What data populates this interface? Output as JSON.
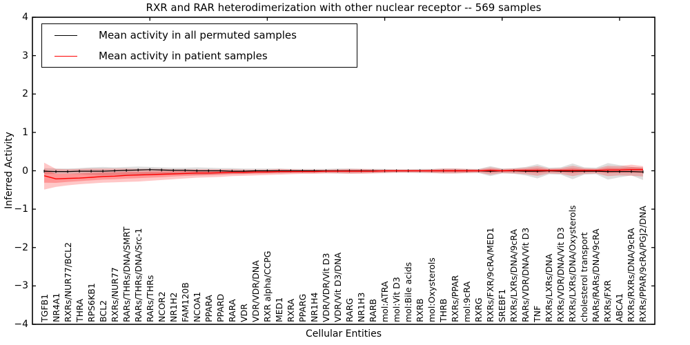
{
  "chart": {
    "title": "RXR and RAR heterodimerization with other nuclear receptor -- 569 samples",
    "xlabel": "Cellular Entities",
    "ylabel": "Inferred Activity"
  },
  "legend": {
    "items": [
      {
        "label": "Mean activity in all permuted samples",
        "color": "#000000"
      },
      {
        "label": "Mean activity in patient samples",
        "color": "#ff0000"
      }
    ]
  },
  "chart_data": {
    "type": "line",
    "title": "RXR and RAR heterodimerization with other nuclear receptor -- 569 samples",
    "xlabel": "Cellular Entities",
    "ylabel": "Inferred Activity",
    "ylim": [
      -4,
      4
    ],
    "yticks": [
      4,
      3,
      2,
      1,
      0,
      -1,
      -2,
      -3,
      -4
    ],
    "ytick_labels": [
      "4",
      "3",
      "2",
      "1",
      "0",
      "−1",
      "−2",
      "−3",
      "−4"
    ],
    "x_major_ticks": [
      10,
      20,
      30,
      40,
      50
    ],
    "grid": false,
    "legend_position": "upper left",
    "categories": [
      "TGFB1",
      "NR4A1",
      "RXRs/NUR77/BCL2",
      "THRA",
      "RPS6KB1",
      "BCL2",
      "RXRs/NUR77",
      "RARs/THRs/DNA/SMRT",
      "RARs/THRs/DNA/Src-1",
      "RARs/THRs",
      "NCOR2",
      "NR1H2",
      "FAM120B",
      "NCOA1",
      "PPARA",
      "PPARD",
      "RARA",
      "VDR",
      "VDR/VDR/DNA",
      "RXR alpha/CCPG",
      "MED1",
      "RXRA",
      "PPARG",
      "NR1H4",
      "VDR/VDR/Vit D3",
      "VDR/Vit D3/DNA",
      "RARG",
      "NR1H3",
      "RARB",
      "mol:ATRA",
      "mol:Vit D3",
      "mol:Bile acids",
      "RXRB",
      "mol:Oxysterols",
      "THRB",
      "RXRs/PPAR",
      "mol:9cRA",
      "RXRG",
      "RXRs/FXR/9cRA/MED1",
      "SREBF1",
      "RXRs/LXRs/DNA/9cRA",
      "RARs/VDR/DNA/Vit D3",
      "TNF",
      "RXRs/LXRs/DNA",
      "RXRs/VDR/DNA/Vit D3",
      "RXRs/LXRs/DNA/Oxysterols",
      "cholesterol transport",
      "RARs/RARs/DNA/9cRA",
      "RXRs/FXR",
      "ABCA1",
      "RXRs/RXRs/DNA/9cRA",
      "RXRs/PPAR/9cRA/PGJ2/DNA"
    ],
    "series": [
      {
        "name": "Mean activity in all permuted samples",
        "color": "#000000",
        "band_color": "#999999",
        "values": [
          -0.01,
          -0.02,
          -0.02,
          -0.01,
          -0.01,
          -0.01,
          0,
          0.01,
          0.02,
          0.03,
          0.02,
          0.01,
          0.01,
          0,
          0,
          0,
          -0.01,
          -0.01,
          0,
          0,
          0,
          0,
          0,
          0,
          0,
          0,
          0,
          0,
          0,
          0,
          0,
          0,
          0,
          0,
          0,
          0,
          0,
          0,
          -0.01,
          0,
          0,
          -0.01,
          -0.01,
          0,
          -0.01,
          -0.01,
          -0.01,
          -0.01,
          -0.02,
          -0.02,
          -0.02,
          -0.03
        ],
        "band_upper": [
          0.07,
          0.06,
          0.06,
          0.07,
          0.09,
          0.1,
          0.09,
          0.1,
          0.11,
          0.1,
          0.09,
          0.08,
          0.08,
          0.09,
          0.08,
          0.07,
          0.07,
          0.06,
          0.06,
          0.06,
          0.06,
          0.05,
          0.05,
          0.05,
          0.05,
          0.06,
          0.06,
          0.05,
          0.05,
          0.05,
          0.04,
          0.04,
          0.05,
          0.05,
          0.06,
          0.06,
          0.05,
          0.05,
          0.12,
          0.06,
          0.07,
          0.1,
          0.17,
          0.08,
          0.09,
          0.19,
          0.09,
          0.08,
          0.2,
          0.15,
          0.1,
          0.09
        ],
        "band_lower": [
          -0.09,
          -0.08,
          -0.08,
          -0.09,
          -0.11,
          -0.12,
          -0.11,
          -0.12,
          -0.13,
          -0.12,
          -0.11,
          -0.1,
          -0.1,
          -0.11,
          -0.1,
          -0.09,
          -0.08,
          -0.08,
          -0.07,
          -0.07,
          -0.07,
          -0.06,
          -0.06,
          -0.06,
          -0.06,
          -0.07,
          -0.07,
          -0.06,
          -0.06,
          -0.06,
          -0.05,
          -0.05,
          -0.06,
          -0.06,
          -0.07,
          -0.07,
          -0.06,
          -0.06,
          -0.14,
          -0.07,
          -0.08,
          -0.12,
          -0.2,
          -0.09,
          -0.1,
          -0.22,
          -0.1,
          -0.09,
          -0.23,
          -0.17,
          -0.12,
          -0.24
        ]
      },
      {
        "name": "Mean activity in patient samples",
        "color": "#ff0000",
        "band_color": "#ff0000",
        "values": [
          -0.13,
          -0.21,
          -0.2,
          -0.19,
          -0.17,
          -0.15,
          -0.14,
          -0.12,
          -0.11,
          -0.1,
          -0.09,
          -0.08,
          -0.07,
          -0.06,
          -0.06,
          -0.05,
          -0.04,
          -0.04,
          -0.03,
          -0.03,
          -0.02,
          -0.02,
          -0.02,
          -0.02,
          -0.01,
          -0.01,
          -0.01,
          -0.01,
          -0.01,
          0,
          0,
          0,
          0,
          0,
          0,
          0,
          0,
          0,
          0.01,
          0,
          0.01,
          0.01,
          0.01,
          0.01,
          0.01,
          0.01,
          0.01,
          0.01,
          0.02,
          0.02,
          0.03,
          0.03
        ],
        "band_upper": [
          0.21,
          0.05,
          0.04,
          0.05,
          0.06,
          0.06,
          0.06,
          0.06,
          0.05,
          0.05,
          0.05,
          0.04,
          0.04,
          0.04,
          0.04,
          0.04,
          0.04,
          0.03,
          0.03,
          0.03,
          0.05,
          0.04,
          0.03,
          0.03,
          0.03,
          0.04,
          0.05,
          0.05,
          0.04,
          0.03,
          0.03,
          0.03,
          0.03,
          0.04,
          0.06,
          0.06,
          0.05,
          0.04,
          0.09,
          0.05,
          0.06,
          0.08,
          0.12,
          0.06,
          0.07,
          0.13,
          0.07,
          0.06,
          0.13,
          0.12,
          0.16,
          0.12
        ],
        "band_lower": [
          -0.49,
          -0.42,
          -0.38,
          -0.35,
          -0.33,
          -0.31,
          -0.3,
          -0.29,
          -0.28,
          -0.26,
          -0.24,
          -0.22,
          -0.2,
          -0.18,
          -0.17,
          -0.16,
          -0.14,
          -0.13,
          -0.12,
          -0.11,
          -0.1,
          -0.09,
          -0.08,
          -0.08,
          -0.07,
          -0.07,
          -0.08,
          -0.08,
          -0.07,
          -0.06,
          -0.05,
          -0.05,
          -0.05,
          -0.06,
          -0.07,
          -0.07,
          -0.06,
          -0.05,
          -0.1,
          -0.06,
          -0.07,
          -0.09,
          -0.13,
          -0.07,
          -0.08,
          -0.14,
          -0.08,
          -0.07,
          -0.14,
          -0.12,
          -0.13,
          -0.15
        ]
      }
    ]
  }
}
